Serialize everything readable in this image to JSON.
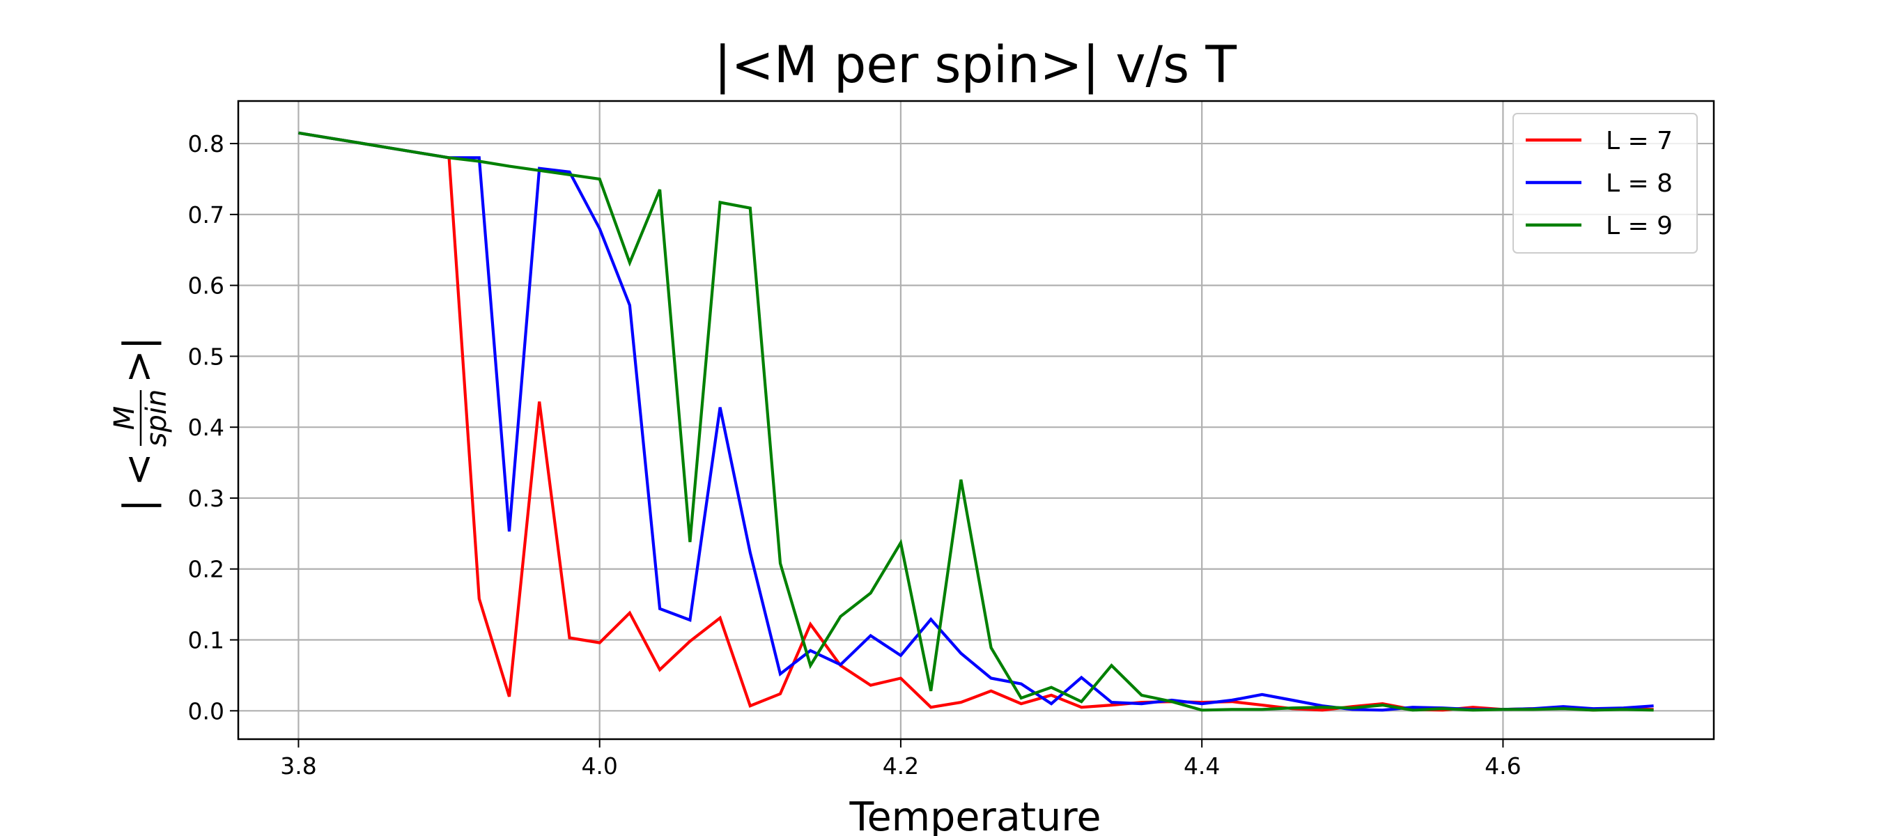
{
  "chart_data": {
    "type": "line",
    "title": "|<M per spin>| v/s T",
    "xlabel": "Temperature",
    "ylabel": {
      "prefix": "| <",
      "numerator": "M",
      "denominator": "spin",
      "suffix": ">|"
    },
    "xlim": [
      3.76,
      4.74
    ],
    "ylim": [
      -0.04,
      0.86
    ],
    "xticks": [
      3.8,
      4.0,
      4.2,
      4.4,
      4.6
    ],
    "xtick_labels": [
      "3.8",
      "4.0",
      "4.2",
      "4.4",
      "4.6"
    ],
    "yticks": [
      0.0,
      0.1,
      0.2,
      0.3,
      0.4,
      0.5,
      0.6,
      0.7,
      0.8
    ],
    "ytick_labels": [
      "0.0",
      "0.1",
      "0.2",
      "0.3",
      "0.4",
      "0.5",
      "0.6",
      "0.7",
      "0.8"
    ],
    "grid": true,
    "legend_position": "top-right",
    "x": [
      3.8,
      3.82,
      3.84,
      3.86,
      3.88,
      3.9,
      3.92,
      3.94,
      3.96,
      3.98,
      4.0,
      4.02,
      4.04,
      4.06,
      4.08,
      4.1,
      4.12,
      4.14,
      4.16,
      4.18,
      4.2,
      4.22,
      4.24,
      4.26,
      4.28,
      4.3,
      4.32,
      4.34,
      4.36,
      4.38,
      4.4,
      4.42,
      4.44,
      4.46,
      4.48,
      4.5,
      4.52,
      4.54,
      4.56,
      4.58,
      4.6,
      4.62,
      4.64,
      4.66,
      4.68,
      4.7
    ],
    "series": [
      {
        "name": "L = 7",
        "color": "#ff0000",
        "values": [
          0.815,
          0.808,
          0.801,
          0.794,
          0.787,
          0.78,
          0.158,
          0.02,
          0.436,
          0.103,
          0.096,
          0.138,
          0.058,
          0.098,
          0.131,
          0.007,
          0.024,
          0.122,
          0.064,
          0.036,
          0.046,
          0.005,
          0.012,
          0.028,
          0.01,
          0.022,
          0.005,
          0.008,
          0.012,
          0.013,
          0.012,
          0.013,
          0.008,
          0.003,
          0.001,
          0.006,
          0.01,
          0.002,
          0.001,
          0.005,
          0.002,
          0.003,
          0.004,
          0.001,
          0.003,
          0.002
        ]
      },
      {
        "name": "L = 8",
        "color": "#0000ff",
        "values": [
          0.815,
          0.808,
          0.801,
          0.794,
          0.787,
          0.78,
          0.78,
          0.253,
          0.765,
          0.76,
          0.68,
          0.572,
          0.144,
          0.128,
          0.428,
          0.223,
          0.052,
          0.085,
          0.065,
          0.106,
          0.078,
          0.129,
          0.081,
          0.046,
          0.038,
          0.01,
          0.047,
          0.012,
          0.01,
          0.015,
          0.01,
          0.015,
          0.023,
          0.015,
          0.007,
          0.002,
          0.001,
          0.005,
          0.004,
          0.002,
          0.002,
          0.003,
          0.006,
          0.003,
          0.004,
          0.007
        ]
      },
      {
        "name": "L = 9",
        "color": "#008000",
        "values": [
          0.815,
          0.808,
          0.801,
          0.794,
          0.787,
          0.78,
          0.775,
          0.768,
          0.762,
          0.756,
          0.75,
          0.632,
          0.735,
          0.238,
          0.717,
          0.709,
          0.208,
          0.064,
          0.133,
          0.166,
          0.237,
          0.028,
          0.326,
          0.089,
          0.018,
          0.033,
          0.013,
          0.064,
          0.022,
          0.013,
          0.001,
          0.002,
          0.002,
          0.004,
          0.005,
          0.004,
          0.008,
          0.001,
          0.003,
          0.001,
          0.002,
          0.002,
          0.003,
          0.001,
          0.002,
          0.001
        ]
      }
    ]
  }
}
